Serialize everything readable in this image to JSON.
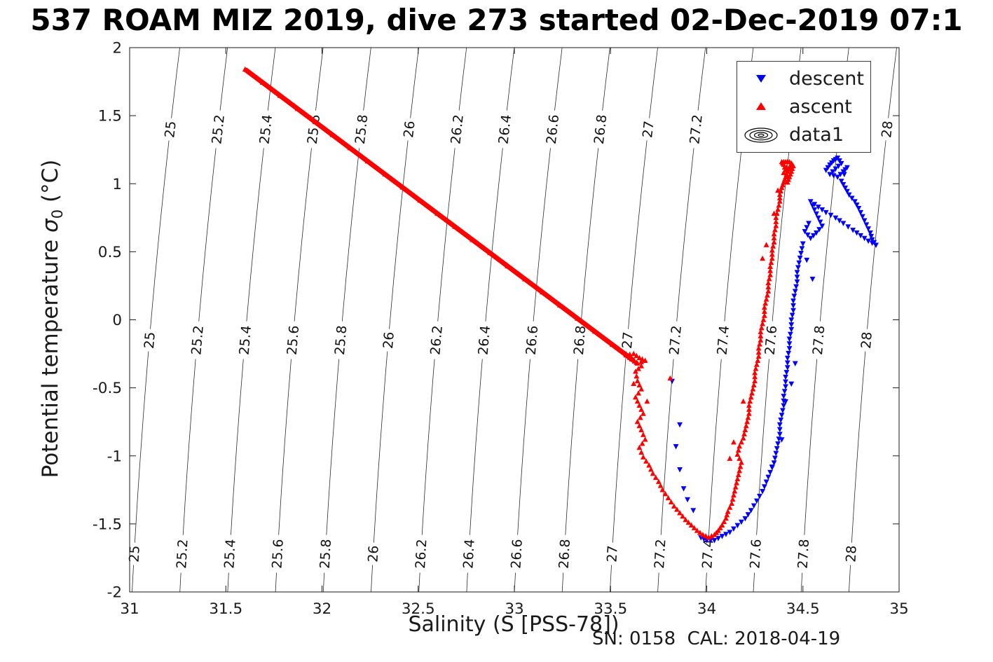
{
  "title": {
    "text": "537 ROAM MIZ 2019, dive 273 started 02-Dec-2019 07:1"
  },
  "labels": {
    "ylabel_pre": "Potential temperature ",
    "ylabel_sigma": "σ",
    "ylabel_sub": "0",
    "ylabel_post": " (°C)"
  },
  "legend": {
    "items": [
      {
        "label": "descent"
      },
      {
        "label": "ascent"
      },
      {
        "label": "data1"
      }
    ]
  },
  "chart_data": {
    "type": "scatter",
    "title": "537 ROAM MIZ 2019, dive 273 started 02-Dec-2019 07:1",
    "xlabel": "Salinity (S [PSS-78])",
    "ylabel": "Potential temperature σ0 (°C)",
    "footer": "SN: 0158  CAL: 2018-04-19",
    "xlim": [
      31,
      35
    ],
    "ylim": [
      -2,
      2
    ],
    "x_ticks": [
      "31",
      "31.5",
      "32",
      "32.5",
      "33",
      "33.5",
      "34",
      "34.5",
      "35"
    ],
    "y_ticks": [
      "-2",
      "-1.5",
      "-1",
      "-0.5",
      "0",
      "0.5",
      "1",
      "1.5",
      "2"
    ],
    "contours": {
      "name": "sigma0-isopycnals",
      "values": [
        25,
        25.2,
        25.4,
        25.6,
        25.8,
        26,
        26.2,
        26.4,
        26.6,
        26.8,
        27,
        27.2,
        27.4,
        27.6,
        27.8,
        28
      ],
      "label_rows_T": [
        1.4,
        -0.15,
        -1.72
      ],
      "color": "#2a2a2a",
      "fit": {
        "sigma_at_smin": 24.91,
        "dsigma_ds": 0.805,
        "a": 0.062,
        "b": 0.0062
      }
    },
    "series": [
      {
        "name": "descent",
        "marker": "triangle-down",
        "color": "#0000ff",
        "points": [
          [
            34.62,
            1.1
          ],
          [
            34.64,
            1.14
          ],
          [
            34.66,
            1.17
          ],
          [
            34.68,
            1.19
          ],
          [
            34.7,
            1.15
          ],
          [
            34.67,
            1.11
          ],
          [
            34.64,
            1.07
          ],
          [
            34.68,
            1.05
          ],
          [
            34.71,
            1.09
          ],
          [
            34.73,
            1.12
          ],
          [
            34.7,
            1.02
          ],
          [
            34.72,
            0.97
          ],
          [
            34.74,
            0.92
          ],
          [
            34.77,
            0.87
          ],
          [
            34.79,
            0.82
          ],
          [
            34.81,
            0.76
          ],
          [
            34.83,
            0.7
          ],
          [
            34.85,
            0.64
          ],
          [
            34.86,
            0.59
          ],
          [
            34.88,
            0.55
          ],
          [
            34.84,
            0.58
          ],
          [
            34.8,
            0.62
          ],
          [
            34.76,
            0.66
          ],
          [
            34.71,
            0.71
          ],
          [
            34.67,
            0.75
          ],
          [
            34.62,
            0.79
          ],
          [
            34.58,
            0.83
          ],
          [
            34.54,
            0.87
          ],
          [
            34.56,
            0.81
          ],
          [
            34.58,
            0.75
          ],
          [
            34.6,
            0.69
          ],
          [
            34.57,
            0.64
          ],
          [
            34.54,
            0.6
          ],
          [
            34.51,
            0.65
          ],
          [
            34.53,
            0.71
          ],
          [
            34.5,
            0.56
          ],
          [
            34.49,
            0.49
          ],
          [
            34.48,
            0.42
          ],
          [
            34.47,
            0.35
          ],
          [
            34.47,
            0.28
          ],
          [
            34.46,
            0.21
          ],
          [
            34.45,
            0.14
          ],
          [
            34.45,
            0.07
          ],
          [
            34.44,
            0.0
          ],
          [
            34.44,
            -0.07
          ],
          [
            34.43,
            -0.14
          ],
          [
            34.43,
            -0.21
          ],
          [
            34.42,
            -0.28
          ],
          [
            34.42,
            -0.35
          ],
          [
            34.41,
            -0.42
          ],
          [
            34.41,
            -0.49
          ],
          [
            34.4,
            -0.56
          ],
          [
            34.4,
            -0.63
          ],
          [
            34.39,
            -0.7
          ],
          [
            34.38,
            -0.77
          ],
          [
            34.38,
            -0.84
          ],
          [
            34.37,
            -0.91
          ],
          [
            34.36,
            -0.98
          ],
          [
            34.35,
            -1.05
          ],
          [
            34.33,
            -1.12
          ],
          [
            34.31,
            -1.19
          ],
          [
            34.29,
            -1.26
          ],
          [
            34.26,
            -1.33
          ],
          [
            34.23,
            -1.4
          ],
          [
            34.2,
            -1.46
          ],
          [
            34.16,
            -1.51
          ],
          [
            34.12,
            -1.56
          ],
          [
            34.08,
            -1.59
          ],
          [
            34.04,
            -1.62
          ],
          [
            34.0,
            -1.62
          ],
          [
            33.97,
            -1.6
          ]
        ],
        "extra_points": [
          [
            33.88,
            -1.24
          ],
          [
            33.86,
            -1.1
          ],
          [
            33.84,
            -0.93
          ],
          [
            33.86,
            -0.77
          ],
          [
            33.82,
            -0.45
          ],
          [
            33.9,
            -1.32
          ],
          [
            33.93,
            -1.4
          ],
          [
            34.46,
            -0.32
          ],
          [
            34.44,
            -0.47
          ],
          [
            34.41,
            -0.6
          ],
          [
            34.39,
            -0.88
          ],
          [
            34.34,
            -1.08
          ],
          [
            34.55,
            0.3
          ],
          [
            34.52,
            0.44
          ]
        ]
      },
      {
        "name": "ascent",
        "marker": "triangle-up",
        "color": "#ff0000",
        "line_segment": {
          "from": [
            31.6,
            1.84
          ],
          "to": [
            33.62,
            -0.3
          ]
        },
        "points": [
          [
            33.58,
            -0.26
          ],
          [
            33.62,
            -0.25
          ],
          [
            33.65,
            -0.28
          ],
          [
            33.68,
            -0.3
          ],
          [
            33.64,
            -0.32
          ],
          [
            33.61,
            -0.29
          ],
          [
            33.66,
            -0.34
          ],
          [
            33.63,
            -0.38
          ],
          [
            33.64,
            -0.45
          ],
          [
            33.66,
            -0.51
          ],
          [
            33.63,
            -0.57
          ],
          [
            33.65,
            -0.63
          ],
          [
            33.67,
            -0.69
          ],
          [
            33.64,
            -0.75
          ],
          [
            33.66,
            -0.81
          ],
          [
            33.68,
            -0.88
          ],
          [
            33.65,
            -0.94
          ],
          [
            33.67,
            -1.01
          ],
          [
            33.7,
            -1.07
          ],
          [
            33.72,
            -1.13
          ],
          [
            33.75,
            -1.19
          ],
          [
            33.77,
            -1.25
          ],
          [
            33.8,
            -1.31
          ],
          [
            33.83,
            -1.37
          ],
          [
            33.86,
            -1.42
          ],
          [
            33.89,
            -1.47
          ],
          [
            33.92,
            -1.51
          ],
          [
            33.95,
            -1.55
          ],
          [
            33.98,
            -1.58
          ],
          [
            34.01,
            -1.6
          ],
          [
            34.04,
            -1.58
          ],
          [
            34.06,
            -1.55
          ],
          [
            34.08,
            -1.51
          ],
          [
            34.1,
            -1.46
          ],
          [
            34.11,
            -1.41
          ],
          [
            34.13,
            -1.35
          ],
          [
            34.14,
            -1.29
          ],
          [
            34.15,
            -1.23
          ],
          [
            34.16,
            -1.17
          ],
          [
            34.17,
            -1.11
          ],
          [
            34.18,
            -1.05
          ],
          [
            34.16,
            -0.99
          ],
          [
            34.17,
            -0.93
          ],
          [
            34.19,
            -0.87
          ],
          [
            34.2,
            -0.81
          ],
          [
            34.21,
            -0.75
          ],
          [
            34.22,
            -0.69
          ],
          [
            34.22,
            -0.63
          ],
          [
            34.23,
            -0.57
          ],
          [
            34.24,
            -0.51
          ],
          [
            34.25,
            -0.45
          ],
          [
            34.25,
            -0.39
          ],
          [
            34.26,
            -0.33
          ],
          [
            34.27,
            -0.27
          ],
          [
            34.27,
            -0.21
          ],
          [
            34.28,
            -0.15
          ],
          [
            34.28,
            -0.09
          ],
          [
            34.29,
            -0.03
          ],
          [
            34.3,
            0.03
          ],
          [
            34.3,
            0.09
          ],
          [
            34.31,
            0.15
          ],
          [
            34.32,
            0.21
          ],
          [
            34.32,
            0.27
          ],
          [
            34.33,
            0.33
          ],
          [
            34.33,
            0.39
          ],
          [
            34.34,
            0.45
          ],
          [
            34.34,
            0.51
          ],
          [
            34.35,
            0.57
          ],
          [
            34.35,
            0.63
          ],
          [
            34.36,
            0.69
          ],
          [
            34.36,
            0.75
          ],
          [
            34.37,
            0.81
          ],
          [
            34.38,
            0.87
          ],
          [
            34.38,
            0.92
          ],
          [
            34.39,
            0.97
          ],
          [
            34.4,
            1.01
          ],
          [
            34.41,
            1.05
          ],
          [
            34.42,
            1.09
          ],
          [
            34.43,
            1.12
          ],
          [
            34.44,
            1.15
          ],
          [
            34.45,
            1.13
          ],
          [
            34.44,
            1.09
          ],
          [
            34.43,
            1.05
          ],
          [
            34.42,
            1.01
          ],
          [
            34.41,
            1.1
          ],
          [
            34.4,
            1.14
          ],
          [
            34.39,
            1.16
          ],
          [
            34.41,
            1.16
          ],
          [
            34.43,
            1.16
          ],
          [
            34.4,
            1.08
          ]
        ],
        "extra_points": [
          [
            33.81,
            -0.43
          ],
          [
            33.69,
            -0.6
          ],
          [
            33.62,
            -0.47
          ],
          [
            34.12,
            -1.02
          ],
          [
            34.14,
            -0.9
          ],
          [
            34.19,
            -0.6
          ],
          [
            34.29,
            0.45
          ],
          [
            34.31,
            0.55
          ],
          [
            34.35,
            0.78
          ],
          [
            34.37,
            0.95
          ]
        ]
      },
      {
        "name": "data1",
        "legend_icon": "contour-rings"
      }
    ]
  }
}
